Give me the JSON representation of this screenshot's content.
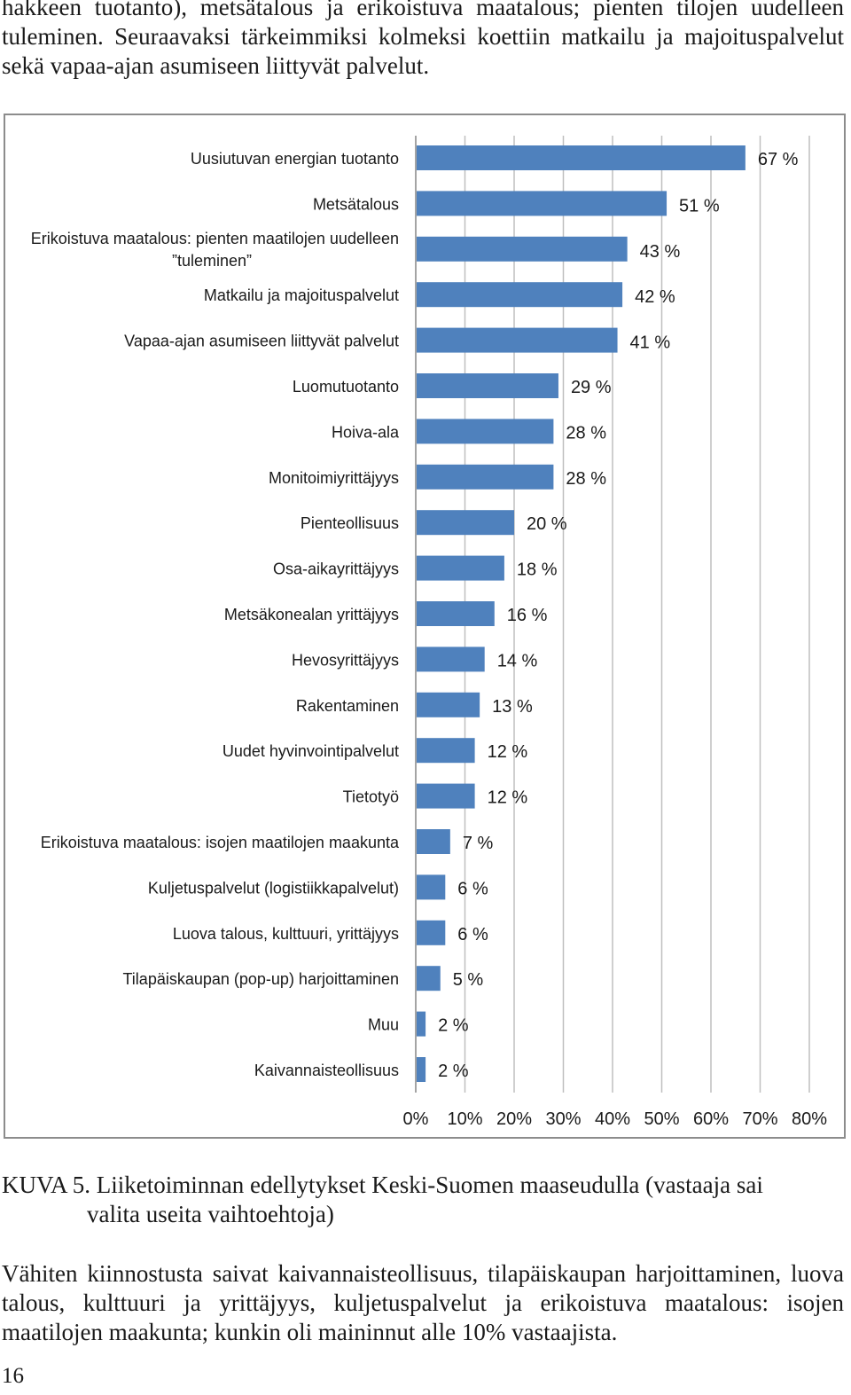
{
  "intro_text": "hakkeen tuotanto), metsätalous ja erikoistuva maatalous; pienten tilojen uudelleen tuleminen. Seuraavaksi tärkeimmiksi kolmeksi koettiin matkailu ja majoituspalvelut sekä vapaa-ajan asumiseen liittyvät palvelut.",
  "caption": {
    "label": "KUVA 5.",
    "text_line1": "Liiketoiminnan edellytykset Keski-Suomen maaseudulla (vastaaja sai",
    "text_line2": "valita useita vaihtoehtoja)"
  },
  "body_text": "Vähiten kiinnostusta saivat kaivannaisteollisuus, tilapäiskaupan harjoittaminen, luova talous, kulttuuri ja yrittäjyys, kuljetuspalvelut ja erikoistuva maatalous: isojen maatilojen maakunta; kunkin oli maininnut alle 10% vastaajista.",
  "page_number": "16",
  "colors": {
    "bar": "#4f81bd",
    "grid": "#bfbfbf",
    "axis": "#868686",
    "text": "#1a1a1a"
  },
  "chart_data": {
    "type": "bar",
    "orientation": "horizontal",
    "title": "",
    "xlabel": "",
    "ylabel": "",
    "xlim": [
      0,
      80
    ],
    "grid": true,
    "legend": "none",
    "ticks": [
      "0%",
      "10%",
      "20%",
      "30%",
      "40%",
      "50%",
      "60%",
      "70%",
      "80%"
    ],
    "categories": [
      [
        "Uusiutuvan energian tuotanto"
      ],
      [
        "Metsätalous"
      ],
      [
        "Erikoistuva maatalous: pienten maatilojen uudelleen",
        "”tuleminen”"
      ],
      [
        "Matkailu ja majoituspalvelut"
      ],
      [
        "Vapaa-ajan asumiseen liittyvät palvelut"
      ],
      [
        "Luomutuotanto"
      ],
      [
        "Hoiva-ala"
      ],
      [
        "Monitoimiyrittäjyys"
      ],
      [
        "Pienteollisuus"
      ],
      [
        "Osa-aikayrittäjyys"
      ],
      [
        "Metsäkonealan yrittäjyys"
      ],
      [
        "Hevosyrittäjyys"
      ],
      [
        "Rakentaminen"
      ],
      [
        "Uudet hyvinvointipalvelut"
      ],
      [
        "Tietotyö"
      ],
      [
        "Erikoistuva maatalous: isojen maatilojen maakunta"
      ],
      [
        "Kuljetuspalvelut (logistiikkapalvelut)"
      ],
      [
        "Luova talous, kulttuuri, yrittäjyys"
      ],
      [
        "Tilapäiskaupan (pop-up) harjoittaminen"
      ],
      [
        "Muu"
      ],
      [
        "Kaivannaisteollisuus"
      ]
    ],
    "values": [
      67,
      51,
      43,
      42,
      41,
      29,
      28,
      28,
      20,
      18,
      16,
      14,
      13,
      12,
      12,
      7,
      6,
      6,
      5,
      2,
      2
    ],
    "data_labels": [
      "67 %",
      "51 %",
      "43 %",
      "42 %",
      "41 %",
      "29 %",
      "28 %",
      "28 %",
      "20 %",
      "18 %",
      "16 %",
      "14 %",
      "13 %",
      "12 %",
      "12 %",
      "7 %",
      "6 %",
      "6 %",
      "5 %",
      "2 %",
      "2 %"
    ]
  }
}
